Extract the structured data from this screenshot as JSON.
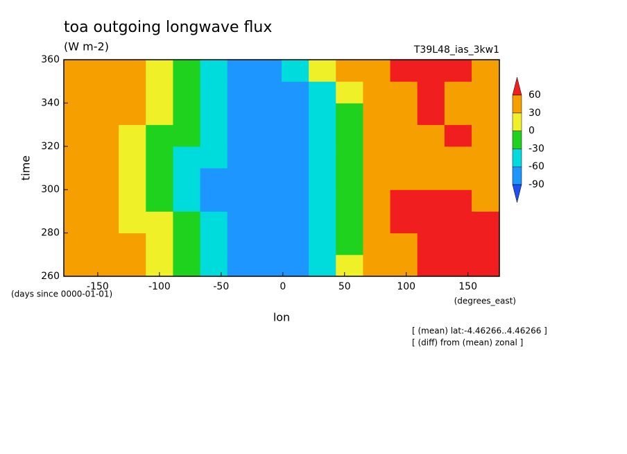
{
  "chart_data": {
    "type": "contour",
    "title": "toa outgoing longwave flux",
    "subtitle": "(W m-2)",
    "dataset": "T39L48_ias_3kw1",
    "xlabel": "lon",
    "ylabel": "time",
    "y_units": "(days since 0000-01-01)",
    "x_units": "(degrees_east)",
    "notes": [
      "[ (mean) lat:-4.46266..4.46266 ]",
      "[ (diff) from (mean) zonal ]"
    ],
    "xlim": [
      -177.5,
      175.5
    ],
    "ylim": [
      260,
      360
    ],
    "xticks": [
      -150,
      -100,
      -50,
      0,
      50,
      100,
      150
    ],
    "yticks": [
      260,
      280,
      300,
      320,
      340,
      360
    ],
    "x": [
      -166,
      -144,
      -122,
      -100,
      -78,
      -56,
      -34,
      -12,
      10,
      32,
      54,
      76,
      98,
      120,
      142,
      164
    ],
    "y": [
      265,
      275,
      285,
      295,
      305,
      315,
      325,
      335,
      345,
      355
    ],
    "z": [
      [
        45,
        40,
        35,
        10,
        -20,
        -50,
        -75,
        -80,
        -70,
        -60,
        20,
        35,
        45,
        65,
        65,
        65
      ],
      [
        40,
        35,
        30,
        5,
        -25,
        -55,
        -80,
        -75,
        -70,
        -50,
        -20,
        40,
        55,
        65,
        60,
        65
      ],
      [
        40,
        35,
        20,
        0,
        -30,
        -60,
        -75,
        -80,
        -70,
        -55,
        -30,
        40,
        65,
        70,
        65,
        65
      ],
      [
        35,
        30,
        10,
        -10,
        -35,
        -65,
        -80,
        -70,
        -75,
        -50,
        -25,
        35,
        60,
        65,
        60,
        55
      ],
      [
        40,
        30,
        10,
        -20,
        -40,
        -70,
        -75,
        -80,
        -65,
        -60,
        -10,
        40,
        45,
        45,
        40,
        40
      ],
      [
        45,
        35,
        20,
        -15,
        -35,
        -60,
        -80,
        -75,
        -75,
        -60,
        -5,
        40,
        45,
        40,
        45,
        45
      ],
      [
        40,
        40,
        20,
        -5,
        -30,
        -55,
        -70,
        -85,
        -70,
        -60,
        -10,
        35,
        50,
        55,
        60,
        50
      ],
      [
        50,
        45,
        30,
        5,
        -30,
        -55,
        -70,
        -80,
        -65,
        -40,
        -20,
        40,
        50,
        65,
        55,
        50
      ],
      [
        45,
        45,
        35,
        15,
        -25,
        -60,
        -75,
        -80,
        -70,
        -55,
        10,
        35,
        55,
        60,
        55,
        50
      ],
      [
        40,
        40,
        30,
        10,
        -20,
        -55,
        -65,
        -70,
        -50,
        20,
        35,
        40,
        65,
        70,
        60,
        50
      ]
    ],
    "levels": [
      -90,
      -60,
      -30,
      0,
      30,
      60
    ],
    "colors": [
      "#1e50f0",
      "#1e96ff",
      "#00dcdc",
      "#1ed21e",
      "#f0f028",
      "#f5a000",
      "#f01e1e"
    ]
  }
}
